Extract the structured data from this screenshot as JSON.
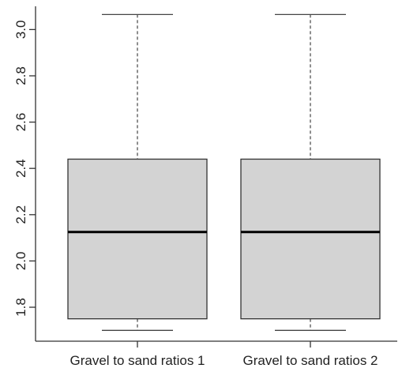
{
  "chart_data": {
    "type": "boxplot",
    "title": "",
    "xlabel": "",
    "ylabel": "",
    "ylim": [
      1.67,
      3.12
    ],
    "yticks": [
      "1.8",
      "2.0",
      "2.2",
      "2.4",
      "2.6",
      "2.8",
      "3.0"
    ],
    "categories": [
      "Gravel to sand ratios 1",
      "Gravel to sand ratios 2"
    ],
    "boxes": [
      {
        "min": 1.7,
        "q1": 1.75,
        "median": 2.125,
        "q3": 2.44,
        "max": 3.065
      },
      {
        "min": 1.7,
        "q1": 1.75,
        "median": 2.125,
        "q3": 2.44,
        "max": 3.065
      }
    ],
    "box_color": "#d3d3d3",
    "grid": false,
    "legend": "none"
  }
}
